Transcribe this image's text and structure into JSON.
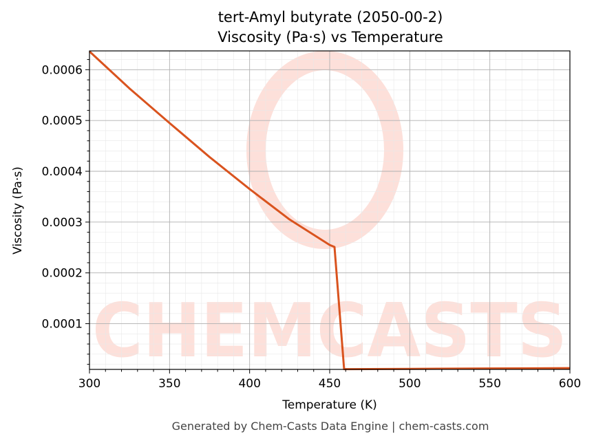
{
  "chart_data": {
    "type": "line",
    "title": "tert-Amyl butyrate (2050-00-2)",
    "subtitle": "Viscosity (Pa·s) vs Temperature",
    "xlabel": "Temperature (K)",
    "ylabel": "Viscosity (Pa·s)",
    "xlim": [
      300,
      600
    ],
    "ylim": [
      1e-05,
      0.000637
    ],
    "x_ticks": [
      300,
      350,
      400,
      450,
      500,
      550,
      600
    ],
    "x_tick_labels": [
      "300",
      "350",
      "400",
      "450",
      "500",
      "550",
      "600"
    ],
    "y_ticks": [
      0.0001,
      0.0002,
      0.0003,
      0.0004,
      0.0005,
      0.0006
    ],
    "y_tick_labels": [
      "0.0001",
      "0.0002",
      "0.0003",
      "0.0004",
      "0.0005",
      "0.0006"
    ],
    "grid": true,
    "color": "#d9531e",
    "series": [
      {
        "x": [
          300,
          325,
          350,
          375,
          400,
          425,
          450,
          453,
          459,
          500,
          550,
          600
        ],
        "y": [
          0.000636,
          0.000563,
          0.000495,
          0.000428,
          0.000365,
          0.000305,
          0.000255,
          0.000251,
          1.05e-05,
          1.1e-05,
          1.18e-05,
          1.25e-05
        ]
      }
    ]
  },
  "watermark": {
    "text": "CHEMCASTS",
    "color": "#fde0da"
  },
  "footer": "Generated by Chem-Casts Data Engine | chem-casts.com"
}
